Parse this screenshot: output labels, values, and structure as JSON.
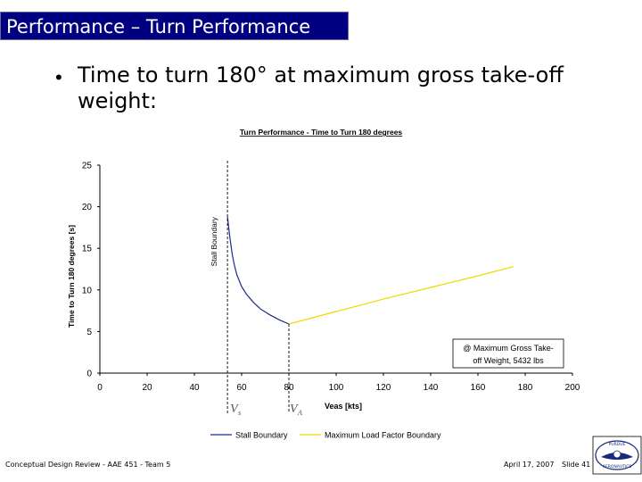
{
  "header": {
    "title": "Performance – Turn Performance"
  },
  "bullet": {
    "text": "Time to turn 180° at maximum gross take-off weight:"
  },
  "chart_data": {
    "type": "line",
    "title": "Turn Performance - Time to Turn 180 degrees",
    "xlabel": "Veas [kts]",
    "ylabel": "Time to Turn 180 degrees [s]",
    "xlim": [
      0,
      200
    ],
    "ylim": [
      0,
      25
    ],
    "x_ticks": [
      "0",
      "20",
      "40",
      "60",
      "80",
      "100",
      "120",
      "140",
      "160",
      "180",
      "200"
    ],
    "y_ticks": [
      "0",
      "5",
      "10",
      "15",
      "20",
      "25"
    ],
    "grid": false,
    "series": [
      {
        "name": "Stall Boundary",
        "color": "#1f2a8c",
        "x": [
          54,
          55,
          56,
          57,
          58,
          60,
          62,
          65,
          68,
          72,
          76,
          80
        ],
        "y": [
          18.8,
          16.3,
          14.3,
          12.9,
          11.8,
          10.4,
          9.5,
          8.5,
          7.7,
          7.0,
          6.4,
          5.9
        ]
      },
      {
        "name": "Maximum Load Factor Boundary",
        "color": "#f2d800",
        "x": [
          80,
          100,
          120,
          140,
          160,
          175
        ],
        "y": [
          5.9,
          7.4,
          8.9,
          10.3,
          11.7,
          12.8
        ]
      }
    ],
    "annotations": {
      "stall_boundary": {
        "text": "Stall Boundary",
        "x": 54
      },
      "va_line": {
        "x": 80
      },
      "vs_label": "V",
      "vs_sub": "s",
      "va_label": "V",
      "va_sub": "A",
      "box_line1": "@ Maximum Gross Take-",
      "box_line2": "off Weight, 5432 lbs"
    },
    "legend": [
      "Stall Boundary",
      "Maximum Load Factor Boundary"
    ],
    "legend_position": "bottom"
  },
  "footer": {
    "left": "Conceptual Design Review - AAE 451 - Team 5",
    "date": "April 17, 2007",
    "slide": "Slide 41"
  },
  "logo": {
    "top_text": "PURDUE",
    "bottom_text": "AERONAUTICS"
  }
}
